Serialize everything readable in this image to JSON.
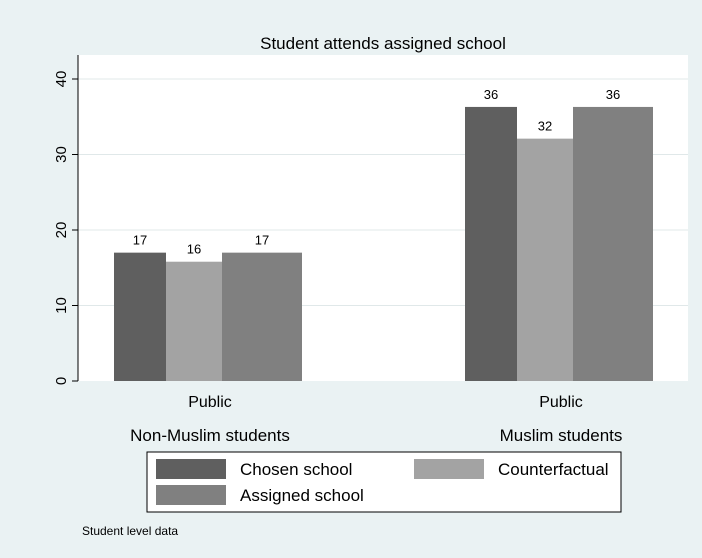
{
  "chart_data": {
    "type": "bar",
    "title": "Student attends assigned school",
    "note": "Student level data",
    "ylim": [
      0,
      42
    ],
    "yticks": [
      0,
      10,
      20,
      30,
      40
    ],
    "grid": true,
    "legend_position": "bottom",
    "groups": [
      {
        "category": "Public",
        "label": "Non-Muslim students"
      },
      {
        "category": "Public",
        "label": "Muslim students"
      }
    ],
    "series": [
      {
        "name": "Chosen school",
        "color": "#5f5f5f",
        "values": [
          17,
          36.3
        ],
        "labels": [
          "17",
          "36"
        ]
      },
      {
        "name": "Counterfactual",
        "color": "#a3a3a3",
        "values": [
          15.8,
          32.1
        ],
        "labels": [
          "16",
          "32"
        ]
      },
      {
        "name": "Assigned school",
        "color": "#808080",
        "values": [
          17,
          36.3
        ],
        "labels": [
          "17",
          "36"
        ]
      }
    ]
  }
}
